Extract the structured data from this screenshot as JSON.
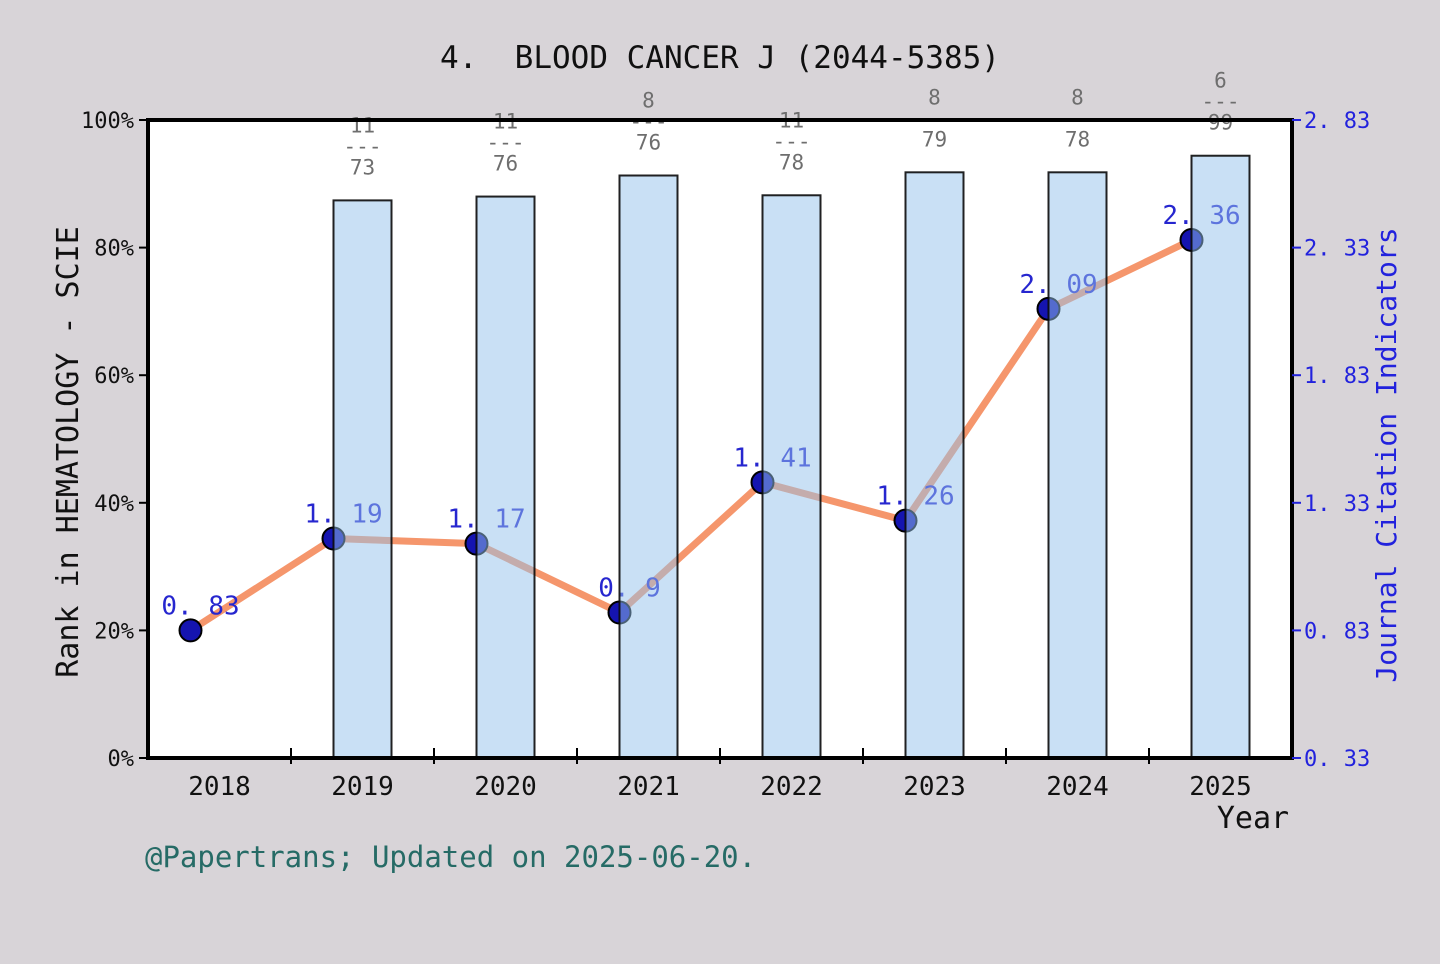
{
  "page": {
    "title": "4.  BLOOD CANCER J (2044-5385)",
    "footer": "@Papertrans; Updated on 2025-06-20."
  },
  "colors": {
    "background": "#d8d4d8",
    "plot_background": "#ffffff",
    "frame": "#000000",
    "bar_fill": "#93c1eb",
    "bar_fill_alpha": 0.5,
    "bar_edge": "#0a0a0a",
    "line": "#f5966c",
    "dot_fill": "#1514b0",
    "dot_edge": "#000000",
    "value_label": "#2626cf",
    "right_axis": "#2222dd",
    "left_axis_text": "#111111",
    "fraction_text": "#6e6e6e",
    "footer_text": "#266b66"
  },
  "chart_data": {
    "type": "bar+line combo (bars on left % axis, line on right axis)",
    "title": "4.  BLOOD CANCER J (2044-5385)",
    "categories": [
      "2018",
      "2019",
      "2020",
      "2021",
      "2022",
      "2023",
      "2024",
      "2025"
    ],
    "x_axis": {
      "label": "Year",
      "minor_ticks": "midpoints between year labels"
    },
    "left_axis": {
      "label": "Rank in HEMATOLOGY - SCIE",
      "range": [
        0,
        100
      ],
      "tick_values": [
        0,
        20,
        40,
        60,
        80,
        100
      ],
      "tick_labels": [
        "0%",
        "20%",
        "40%",
        "60%",
        "80%",
        "100%"
      ]
    },
    "right_axis": {
      "label": "Journal Citation Indicators",
      "range": [
        0.33,
        2.83
      ],
      "tick_values": [
        0.33,
        0.83,
        1.33,
        1.83,
        2.33,
        2.83
      ],
      "tick_labels": [
        "0. 33",
        "0. 83",
        "1. 33",
        "1. 83",
        "2. 33",
        "2. 83"
      ]
    },
    "series": [
      {
        "name": "Rank in HEMATOLOGY - SCIE (percentile bars)",
        "type": "bar",
        "axis": "left",
        "values_pct": [
          null,
          87.4,
          88.0,
          91.3,
          88.2,
          91.8,
          91.8,
          94.4
        ],
        "rank_fractions": [
          null,
          {
            "rank": "11",
            "of": "73"
          },
          {
            "rank": "11",
            "of": "76"
          },
          {
            "rank": "8",
            "of": "76"
          },
          {
            "rank": "11",
            "of": "78"
          },
          {
            "rank": "8",
            "of": "79"
          },
          {
            "rank": "8",
            "of": "78"
          },
          {
            "rank": "6",
            "of": "99"
          }
        ],
        "fraction_dash": "---"
      },
      {
        "name": "Journal Citation Indicators (line with dots)",
        "type": "line",
        "axis": "right",
        "values": [
          0.83,
          1.19,
          1.17,
          0.9,
          1.41,
          1.26,
          2.09,
          2.36
        ],
        "point_labels": [
          "0. 83",
          "1. 19",
          "1. 17",
          "0. 9",
          "1. 41",
          "1. 26",
          "2. 09",
          "2. 36"
        ]
      }
    ],
    "legend": "none",
    "grid": "off"
  }
}
